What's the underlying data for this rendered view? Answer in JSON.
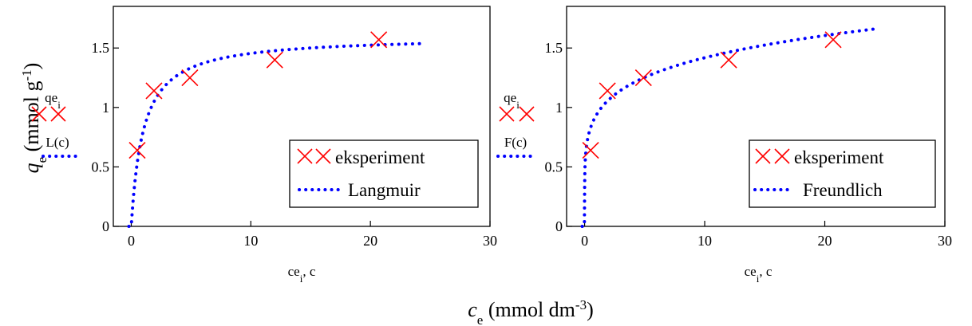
{
  "figure": {
    "ylabel": {
      "main": "q",
      "sub": "e",
      "rest": " (mmol g",
      "sup": "-1",
      "close": ")"
    },
    "xlabel": {
      "main": "c",
      "sub": "e",
      "rest": " (mmol dm",
      "sup": "-3",
      "close": ")"
    }
  },
  "chart_data": [
    {
      "type": "scatter",
      "panel": "left",
      "xlim": [
        -1.5,
        30
      ],
      "ylim": [
        0,
        1.85
      ],
      "x_ticks": [
        0,
        10,
        20,
        30
      ],
      "y_ticks": [
        0,
        0.5,
        1,
        1.5
      ],
      "x_tick_labels": [
        "0",
        "10",
        "20",
        "30"
      ],
      "y_tick_labels": [
        "0",
        "0.5",
        "1",
        "1.5"
      ],
      "x_axis_label": {
        "main": "ce",
        "sub": "i",
        "rest": ", c"
      },
      "y_axis_symbols": {
        "points": {
          "main": "qe",
          "sub": "i"
        },
        "curve": "L(c)"
      },
      "grid": false,
      "legend_placement": "bottom-right",
      "series": [
        {
          "name": "eksperiment",
          "kind": "markers",
          "marker": "x",
          "color": "#ff0000",
          "x": [
            0.5,
            1.9,
            4.9,
            12.0,
            20.7
          ],
          "y": [
            0.64,
            1.14,
            1.25,
            1.4,
            1.57
          ]
        },
        {
          "name": "Langmuir",
          "kind": "dotted-line",
          "color": "#0000ff",
          "model": "langmuir",
          "params": {
            "qmax": 1.6,
            "K": 1.0
          },
          "x_range": [
            -0.2,
            24.5
          ]
        }
      ]
    },
    {
      "type": "scatter",
      "panel": "right",
      "xlim": [
        -1.5,
        30
      ],
      "ylim": [
        0,
        1.85
      ],
      "x_ticks": [
        0,
        10,
        20,
        30
      ],
      "y_ticks": [
        0,
        0.5,
        1,
        1.5
      ],
      "x_tick_labels": [
        "0",
        "10",
        "20",
        "30"
      ],
      "y_tick_labels": [
        "0",
        "0.5",
        "1",
        "1.5"
      ],
      "x_axis_label": {
        "main": "ce",
        "sub": "i",
        "rest": ", c"
      },
      "y_axis_symbols": {
        "points": {
          "main": "qe",
          "sub": "i"
        },
        "curve": "F(c)"
      },
      "grid": false,
      "legend_placement": "bottom-right",
      "series": [
        {
          "name": "eksperiment",
          "kind": "markers",
          "marker": "x",
          "color": "#ff0000",
          "x": [
            0.5,
            1.9,
            4.9,
            12.0,
            20.7
          ],
          "y": [
            0.64,
            1.14,
            1.25,
            1.4,
            1.57
          ]
        },
        {
          "name": "Freundlich",
          "kind": "dotted-line",
          "color": "#0000ff",
          "model": "freundlich",
          "params": {
            "Kf": 0.94,
            "n": 5.6
          },
          "x_range": [
            -0.2,
            24.2
          ]
        }
      ]
    }
  ]
}
